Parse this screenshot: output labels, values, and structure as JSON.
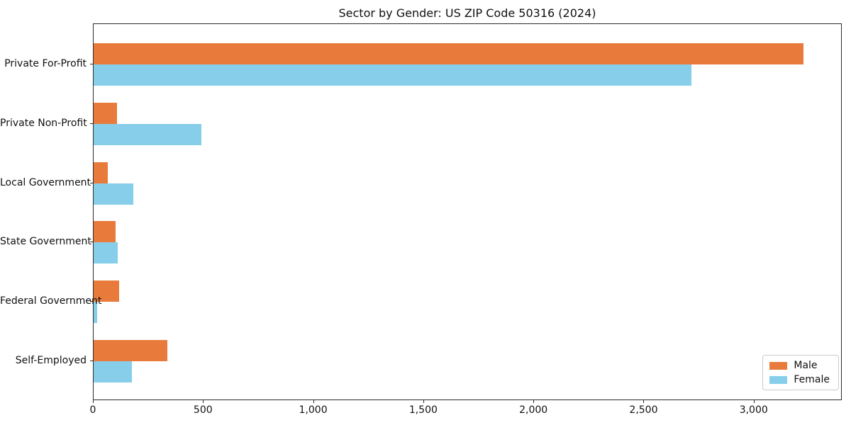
{
  "chart_data": {
    "type": "bar",
    "orientation": "horizontal",
    "title": "Sector by Gender: US ZIP Code 50316 (2024)",
    "categories": [
      "Private For-Profit",
      "Private Non-Profit",
      "Local Government",
      "State Government",
      "Federal Government",
      "Self-Employed"
    ],
    "series": [
      {
        "name": "Male",
        "color": "#E87B3C",
        "values": [
          3230,
          105,
          65,
          100,
          115,
          335
        ]
      },
      {
        "name": "Female",
        "color": "#87CEEB",
        "values": [
          2720,
          490,
          180,
          110,
          15,
          175
        ]
      }
    ],
    "xlabel": "",
    "ylabel": "",
    "xlim": [
      0,
      3400
    ],
    "xticks": [
      0,
      500,
      1000,
      1500,
      2000,
      2500,
      3000
    ],
    "xtick_labels": [
      "0",
      "500",
      "1,000",
      "1,500",
      "2,000",
      "2,500",
      "3,000"
    ],
    "grid": false,
    "legend_position": "lower right",
    "colors": {
      "male": "#E87B3C",
      "female": "#87CEEB",
      "spine": "#2b2b2b",
      "text": "#111111"
    }
  }
}
